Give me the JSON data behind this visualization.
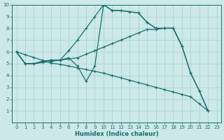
{
  "xlabel": "Humidex (Indice chaleur)",
  "bg_color": "#cce8e8",
  "grid_color": "#aad4d4",
  "line_color": "#1a6e6e",
  "xlim": [
    -0.5,
    23.5
  ],
  "ylim": [
    0,
    10
  ],
  "xticks": [
    0,
    1,
    2,
    3,
    4,
    5,
    6,
    7,
    8,
    9,
    10,
    11,
    12,
    13,
    14,
    15,
    16,
    17,
    18,
    19,
    20,
    21,
    22,
    23
  ],
  "yticks": [
    1,
    2,
    3,
    4,
    5,
    6,
    7,
    8,
    9,
    10
  ],
  "lines": [
    {
      "x": [
        0,
        1,
        2,
        3,
        4,
        5,
        6,
        7,
        8,
        9,
        10,
        11,
        12,
        13,
        14,
        15,
        16,
        17,
        18,
        19,
        20,
        21,
        22
      ],
      "y": [
        6,
        5,
        5,
        5.2,
        5.3,
        5.3,
        6.1,
        7.0,
        8.0,
        9.0,
        10.0,
        9.5,
        9.5,
        9.4,
        9.3,
        8.5,
        8.0,
        8.0,
        8.0,
        6.5,
        4.2,
        2.7,
        1.0
      ]
    },
    {
      "x": [
        0,
        1,
        2,
        3,
        4,
        5,
        6,
        7,
        8,
        9,
        10,
        11,
        12,
        13,
        14,
        15,
        16,
        17,
        18,
        19,
        20,
        21,
        22
      ],
      "y": [
        6,
        5,
        5,
        5.2,
        5.3,
        5.3,
        5.5,
        4.8,
        3.5,
        4.8,
        10.0,
        9.5,
        9.5,
        9.4,
        9.3,
        8.5,
        8.0,
        8.0,
        8.0,
        6.5,
        4.2,
        2.7,
        1.0
      ]
    },
    {
      "x": [
        0,
        1,
        2,
        3,
        4,
        5,
        6,
        7,
        8,
        9,
        10,
        11,
        12,
        13,
        14,
        15,
        16,
        17,
        18,
        19
      ],
      "y": [
        6,
        5,
        5,
        5.1,
        5.2,
        5.3,
        5.4,
        5.5,
        5.8,
        6.1,
        6.4,
        6.7,
        7.0,
        7.3,
        7.6,
        7.9,
        7.9,
        8.0,
        8.0,
        6.5
      ]
    },
    {
      "x": [
        0,
        1,
        2,
        3,
        4,
        5,
        6,
        7,
        8,
        9,
        10,
        11,
        12,
        13,
        14,
        15,
        16,
        17,
        18,
        19,
        20,
        21,
        22
      ],
      "y": [
        6,
        5.76,
        5.52,
        5.28,
        5.04,
        4.95,
        4.8,
        4.65,
        4.5,
        4.35,
        4.2,
        4.0,
        3.8,
        3.6,
        3.4,
        3.2,
        3.0,
        2.8,
        2.6,
        2.4,
        2.2,
        1.6,
        1.0
      ]
    }
  ]
}
